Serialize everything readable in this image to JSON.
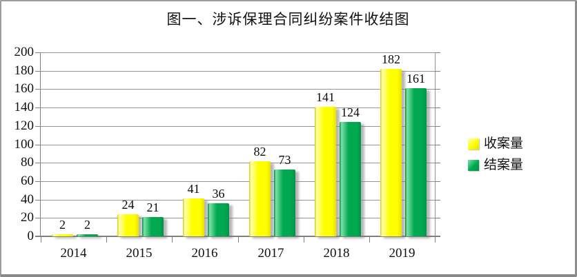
{
  "window": {
    "title": "图一、涉诉保理合同纠纷案件收结图"
  },
  "chart_data": {
    "type": "bar",
    "title": "图一、涉诉保理合同纠纷案件收结图",
    "categories": [
      "2014",
      "2015",
      "2016",
      "2017",
      "2018",
      "2019"
    ],
    "series": [
      {
        "name": "收案量",
        "values": [
          2,
          24,
          41,
          82,
          141,
          182
        ],
        "color": "#ffff00",
        "color_light": "#ffffb0",
        "color_dark": "#d6cc00",
        "color_shade": "#e9e100"
      },
      {
        "name": "结案量",
        "values": [
          2,
          21,
          36,
          73,
          124,
          161
        ],
        "color": "#00a850",
        "color_light": "#7ce3a8",
        "color_dark": "#00833f",
        "color_shade": "#00934a"
      }
    ],
    "ylim": [
      0,
      200
    ],
    "yticks": [
      0,
      20,
      40,
      60,
      80,
      100,
      120,
      140,
      160,
      180,
      200
    ],
    "grid": true,
    "legend_position": "right",
    "data_labels": true
  },
  "colors": {
    "gridline": "#949494",
    "axis": "#7f7f7f",
    "text": "#111111",
    "background": "#ffffff",
    "frame_border": "#9b9b9b"
  }
}
